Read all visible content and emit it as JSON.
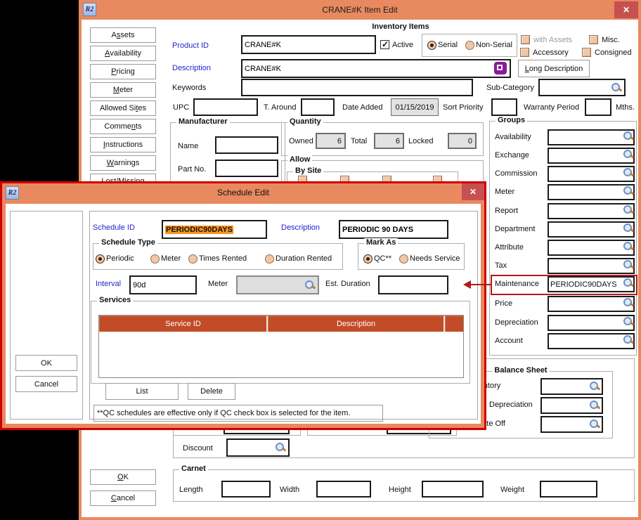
{
  "app_icon_text": "R2",
  "colors": {
    "titlebar": "#E8895F",
    "close_button": "#C75050",
    "dialog_border": "#D00000",
    "table_header": "#C24B28",
    "selection": "#F7941E",
    "annotation": "#B11A1A",
    "label_blue": "#2323CB"
  },
  "main_window": {
    "title": "CRANE#K Item Edit",
    "close_glyph": "✕",
    "form_header": "Inventory Items",
    "sidebar": {
      "buttons": [
        {
          "label": "Assets",
          "u": 1
        },
        {
          "label": "Availability",
          "u": 0
        },
        {
          "label": "Pricing",
          "u": 0
        },
        {
          "label": "Meter",
          "u": 0
        },
        {
          "label": "Allowed Sites",
          "u": 10
        },
        {
          "label": "Comments",
          "u": 5
        },
        {
          "label": "Instructions",
          "u": 0
        },
        {
          "label": "Warnings",
          "u": 0
        },
        {
          "label": "Lost/Missing",
          "u": -1
        }
      ],
      "ok": {
        "label": "OK",
        "u": 0
      },
      "cancel": {
        "label": "Cancel",
        "u": 0
      }
    },
    "product": {
      "label": "Product ID",
      "value": "CRANE#K"
    },
    "active_label": "Active",
    "serial_label": "Serial",
    "non_serial_label": "Non-Serial",
    "flags": {
      "with_assets": "with Assets",
      "misc": "Misc.",
      "accessory": "Accessory",
      "consigned": "Consigned"
    },
    "description": {
      "label": "Description",
      "value": "CRANE#K"
    },
    "long_description": {
      "label": "Long Description",
      "u": 0
    },
    "keywords": {
      "label": "Keywords",
      "value": ""
    },
    "sub_category": {
      "label": "Sub-Category",
      "value": ""
    },
    "upc": {
      "label": "UPC",
      "value": ""
    },
    "t_around": {
      "label": "T. Around",
      "value": ""
    },
    "date_added": {
      "label": "Date Added",
      "value": "01/15/2019"
    },
    "sort_priority": {
      "label": "Sort Priority",
      "value": ""
    },
    "warranty": {
      "label": "Warranty Period",
      "value": "",
      "suffix": "Mths."
    },
    "manufacturer": {
      "legend": "Manufacturer",
      "name_label": "Name",
      "part_label": "Part No."
    },
    "quantity": {
      "legend": "Quantity",
      "owned_label": "Owned",
      "owned": "6",
      "total_label": "Total",
      "total": "6",
      "locked_label": "Locked",
      "locked": "0"
    },
    "allow": {
      "legend": "Allow",
      "by_site": "By Site"
    },
    "groups": {
      "legend": "Groups",
      "rows": [
        {
          "label": "Availability",
          "value": ""
        },
        {
          "label": "Exchange",
          "value": ""
        },
        {
          "label": "Commission",
          "value": ""
        },
        {
          "label": "Meter",
          "value": ""
        },
        {
          "label": "Report",
          "value": ""
        },
        {
          "label": "Department",
          "value": ""
        },
        {
          "label": "Attribute",
          "value": ""
        },
        {
          "label": "Tax",
          "value": ""
        },
        {
          "label": "Maintenance",
          "value": "PERIODIC90DAYS"
        },
        {
          "label": "Price",
          "value": ""
        },
        {
          "label": "Depreciation",
          "value": ""
        },
        {
          "label": "Account",
          "value": ""
        }
      ]
    },
    "balance_sheet": {
      "legend": "Balance Sheet",
      "rows": [
        {
          "label": "Inventory",
          "value": ""
        },
        {
          "label": "Depreciation",
          "value": ""
        },
        {
          "label": "Write Off",
          "value": ""
        }
      ]
    },
    "discount": {
      "label": "Discount",
      "value": ""
    },
    "carnet": {
      "legend": "Carnet",
      "fields": [
        {
          "label": "Length",
          "value": ""
        },
        {
          "label": "Width",
          "value": ""
        },
        {
          "label": "Height",
          "value": ""
        },
        {
          "label": "Weight",
          "value": ""
        }
      ]
    }
  },
  "dialog": {
    "title": "Schedule Edit",
    "close_glyph": "✕",
    "schedule_id": {
      "label": "Schedule ID",
      "value": "PERIODIC90DAYS"
    },
    "description": {
      "label": "Description",
      "value": "PERIODIC 90 DAYS"
    },
    "schedule_type": {
      "legend": "Schedule Type",
      "options": [
        "Periodic",
        "Meter",
        "Times Rented",
        "Duration Rented"
      ],
      "selected": "Periodic"
    },
    "mark_as": {
      "legend": "Mark As",
      "options": [
        "QC**",
        "Needs Service"
      ],
      "selected": "QC**"
    },
    "interval": {
      "label": "Interval",
      "value": "90d"
    },
    "meter": {
      "label": "Meter",
      "value": ""
    },
    "est_duration": {
      "label": "Est. Duration",
      "value": ""
    },
    "services": {
      "legend": "Services",
      "columns": [
        "Service ID",
        "Description"
      ],
      "rows": []
    },
    "list_label": "List",
    "delete_label": "Delete",
    "note": "**QC schedules are effective only if QC check box is selected for the item.",
    "ok_label": "OK",
    "cancel_label": "Cancel"
  }
}
